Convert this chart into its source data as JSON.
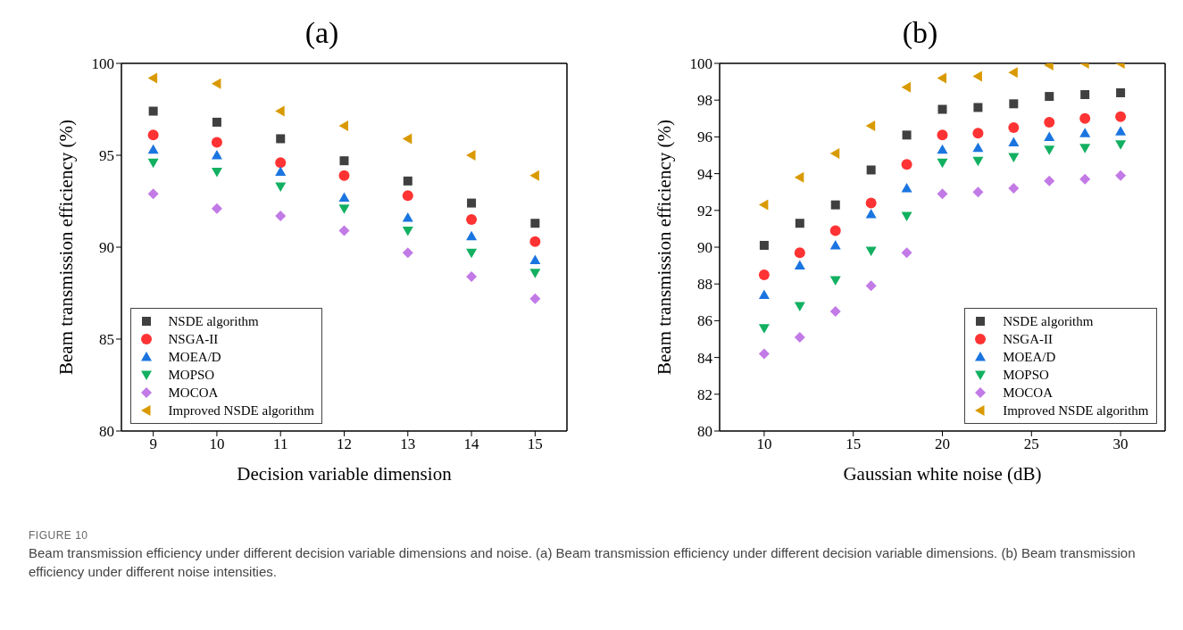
{
  "chart_data": [
    {
      "type": "scatter",
      "title": "(a)",
      "xlabel": "Decision variable dimension",
      "ylabel": "Beam transmission efficiency (%)",
      "x": [
        9,
        10,
        11,
        12,
        13,
        14,
        15
      ],
      "xlim": [
        8.5,
        15.5
      ],
      "xticks": [
        9,
        10,
        11,
        12,
        13,
        14,
        15
      ],
      "ylim": [
        80,
        100
      ],
      "yticks": [
        80,
        85,
        90,
        95,
        100
      ],
      "legend": "bottom left",
      "series": [
        {
          "name": "NSDE algorithm",
          "color": "#404040",
          "marker": "square",
          "values": [
            97.4,
            96.8,
            95.9,
            94.7,
            93.6,
            92.4,
            91.3
          ]
        },
        {
          "name": "NSGA-II",
          "color": "#ff3333",
          "marker": "circle",
          "values": [
            96.1,
            95.7,
            94.6,
            93.9,
            92.8,
            91.5,
            90.3
          ]
        },
        {
          "name": "MOEA/D",
          "color": "#1a75e0",
          "marker": "triangle",
          "values": [
            95.3,
            95.0,
            94.1,
            92.7,
            91.6,
            90.6,
            89.3
          ]
        },
        {
          "name": "MOPSO",
          "color": "#12b060",
          "marker": "triangle-down",
          "values": [
            94.6,
            94.1,
            93.3,
            92.1,
            90.9,
            89.7,
            88.6
          ]
        },
        {
          "name": "MOCOA",
          "color": "#c27ae6",
          "marker": "diamond",
          "values": [
            92.9,
            92.1,
            91.7,
            90.9,
            89.7,
            88.4,
            87.2
          ]
        },
        {
          "name": "Improved NSDE algorithm",
          "color": "#d99a00",
          "marker": "triangle-left",
          "values": [
            99.2,
            98.9,
            97.4,
            96.6,
            95.9,
            95.0,
            93.9
          ]
        }
      ]
    },
    {
      "type": "scatter",
      "title": "(b)",
      "xlabel": "Gaussian white noise (dB)",
      "ylabel": "Beam transmission efficiency (%)",
      "x": [
        10,
        12,
        14,
        16,
        18,
        20,
        22,
        24,
        26,
        28,
        30
      ],
      "xlim": [
        7.5,
        32.5
      ],
      "xticks": [
        10,
        15,
        20,
        25,
        30
      ],
      "ylim": [
        80,
        100
      ],
      "yticks": [
        80,
        82,
        84,
        86,
        88,
        90,
        92,
        94,
        96,
        98,
        100
      ],
      "legend": "bottom right",
      "series": [
        {
          "name": "NSDE algorithm",
          "color": "#404040",
          "marker": "square",
          "values": [
            90.1,
            91.3,
            92.3,
            94.2,
            96.1,
            97.5,
            97.6,
            97.8,
            98.2,
            98.3,
            98.4
          ]
        },
        {
          "name": "NSGA-II",
          "color": "#ff3333",
          "marker": "circle",
          "values": [
            88.5,
            89.7,
            90.9,
            92.4,
            94.5,
            96.1,
            96.2,
            96.5,
            96.8,
            97.0,
            97.1
          ]
        },
        {
          "name": "MOEA/D",
          "color": "#1a75e0",
          "marker": "triangle",
          "values": [
            87.4,
            89.0,
            90.1,
            91.8,
            93.2,
            95.3,
            95.4,
            95.7,
            96.0,
            96.2,
            96.3
          ]
        },
        {
          "name": "MOPSO",
          "color": "#12b060",
          "marker": "triangle-down",
          "values": [
            85.6,
            86.8,
            88.2,
            89.8,
            91.7,
            94.6,
            94.7,
            94.9,
            95.3,
            95.4,
            95.6
          ]
        },
        {
          "name": "MOCOA",
          "color": "#c27ae6",
          "marker": "diamond",
          "values": [
            84.2,
            85.1,
            86.5,
            87.9,
            89.7,
            92.9,
            93.0,
            93.2,
            93.6,
            93.7,
            93.9
          ]
        },
        {
          "name": "Improved NSDE algorithm",
          "color": "#d99a00",
          "marker": "triangle-left",
          "values": [
            92.3,
            93.8,
            95.1,
            96.6,
            98.7,
            99.2,
            99.3,
            99.5,
            99.9,
            100,
            100
          ]
        }
      ],
      "annotations": [
        "FIGURE 10",
        "Beam transmission efficiency under different decision variable dimensions and noise. (a) Beam transmission efficiency under different decision variable dimensions. (b) Beam transmission efficiency under different noise intensities."
      ]
    }
  ]
}
